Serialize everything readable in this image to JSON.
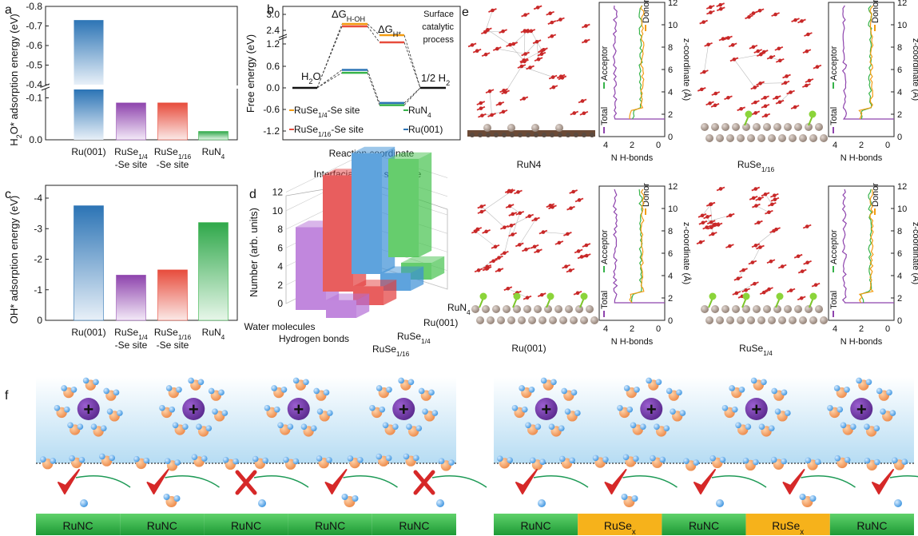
{
  "panel_labels": {
    "a": "a",
    "b": "b",
    "c": "c",
    "d": "d",
    "e": "e",
    "f": "f"
  },
  "chart_data": [
    {
      "panel": "a",
      "type": "bar",
      "ylabel": "H₂O* adsorption energy (eV)",
      "categories": [
        [
          "Ru(001)",
          ""
        ],
        [
          "RuSe1/4",
          "-Se site"
        ],
        [
          "RuSe1/16",
          "-Se site"
        ],
        [
          "RuN4",
          ""
        ]
      ],
      "values": [
        -0.73,
        -0.088,
        -0.088,
        -0.02
      ],
      "yticks_upper": [
        "-0.8",
        "-0.7",
        "-0.6",
        "-0.5",
        "-0.4"
      ],
      "yticks_lower": [
        "-0.1",
        "0.0"
      ],
      "colors": [
        "#2c74b5",
        "#9b59b6",
        "#e74c3c",
        "#37b34a"
      ]
    },
    {
      "panel": "b",
      "type": "line",
      "ylabel": "Free energy (eV)",
      "xlabel": "Reaction coordinate",
      "yticks": [
        "3.0",
        "2.4",
        "1.2",
        "0.6",
        "0.0",
        "-0.6",
        "-1.2"
      ],
      "labels": {
        "start": "H₂O",
        "end": "1/2 H₂",
        "dg_hoh": "ΔG",
        "dg_hoh_sub": "H-OH",
        "dg_h": "ΔG",
        "dg_h_sub": "H*",
        "surface": [
          "Surface",
          "catalytic",
          "process"
        ]
      },
      "series": [
        {
          "name": "RuSe1/4-Se site",
          "color": "#f39c12",
          "values": [
            0,
            2.72,
            1.45,
            0
          ]
        },
        {
          "name": "RuSe1/16-Se site",
          "color": "#e74c3c",
          "values": [
            0,
            2.66,
            1.3,
            0
          ]
        },
        {
          "name": "RuN4",
          "color": "#37b34a",
          "values": [
            0,
            0.42,
            -0.48,
            0
          ]
        },
        {
          "name": "Ru(001)",
          "color": "#2c74b5",
          "values": [
            0,
            0.5,
            -0.42,
            0
          ]
        }
      ],
      "legend": [
        {
          "t": "RuSe",
          "sub": "1/4",
          "t2": "-Se site",
          "color": "#f39c12"
        },
        {
          "t": "RuN",
          "sub": "4",
          "t2": "",
          "color": "#37b34a"
        },
        {
          "t": "RuSe",
          "sub": "1/16",
          "t2": "-Se site",
          "color": "#e74c3c"
        },
        {
          "t": "Ru(001)",
          "sub": "",
          "t2": "",
          "color": "#2c74b5"
        }
      ]
    },
    {
      "panel": "c",
      "type": "bar",
      "ylabel": "OH* adsorption energy (eV)",
      "categories": [
        [
          "Ru(001)",
          ""
        ],
        [
          "RuSe1/4",
          "-Se site"
        ],
        [
          "RuSe1/16",
          "-Se site"
        ],
        [
          "RuN4",
          ""
        ]
      ],
      "values": [
        -3.75,
        -1.48,
        -1.65,
        -3.2
      ],
      "ylim": [
        0,
        -4
      ],
      "yticks": [
        "-4",
        "-3",
        "-2",
        "-1",
        "0"
      ],
      "colors": [
        "#2c74b5",
        "#9b59b6",
        "#e74c3c",
        "#37b34a"
      ]
    },
    {
      "panel": "d",
      "type": "bar",
      "title": "Interfacial water structure",
      "ylabel": "Number (arb. units)",
      "yticks": [
        "0",
        "2",
        "4",
        "6",
        "8",
        "10",
        "12"
      ],
      "rows": [
        "Water molecules",
        "Hydrogen bonds"
      ],
      "cols": [
        "RuSe1/16",
        "RuSe1/4",
        "Ru(001)",
        "RuN4"
      ],
      "series": [
        {
          "name": "RuSe1/16",
          "color": "#b46dd6",
          "values": [
            7.4,
            1.6
          ]
        },
        {
          "name": "RuSe1/4",
          "color": "#e33b3b",
          "values": [
            10.4,
            1.7
          ]
        },
        {
          "name": "Ru(001)",
          "color": "#3b8fd6",
          "values": [
            10.8,
            1.6
          ]
        },
        {
          "name": "RuN4",
          "color": "#45c24d",
          "values": [
            8.8,
            1.5
          ]
        }
      ]
    }
  ],
  "panel_e": {
    "structures": [
      {
        "name": "RuN4",
        "sub": ""
      },
      {
        "name": "RuSe",
        "sub": "1/16"
      },
      {
        "name": "Ru(001)",
        "sub": ""
      },
      {
        "name": "RuSe",
        "sub": "1/4"
      }
    ],
    "profile_xlabel": "N H-bonds",
    "profile_ylabel": "z-coordinate (Å)",
    "profile_xticks": [
      "4",
      "2",
      "0"
    ],
    "profile_yticks": [
      "0",
      "2",
      "4",
      "6",
      "8",
      "10",
      "12"
    ],
    "legend": [
      {
        "name": "Total",
        "color": "#8e44ad"
      },
      {
        "name": "Acceptor",
        "color": "#37b34a"
      },
      {
        "name": "Donor",
        "color": "#f39c12"
      }
    ]
  },
  "panel_f": {
    "left_segments": [
      "RuNC",
      "RuNC",
      "RuNC",
      "RuNC",
      "RuNC"
    ],
    "right_segments": [
      {
        "t": "RuNC",
        "sub": ""
      },
      {
        "t": "RuSe",
        "sub": "x"
      },
      {
        "t": "RuNC",
        "sub": ""
      },
      {
        "t": "RuSe",
        "sub": "x"
      },
      {
        "t": "RuNC",
        "sub": ""
      }
    ],
    "left_marks": [
      "check",
      "check",
      "cross",
      "check",
      "cross"
    ],
    "right_marks": [
      "check",
      "check",
      "check",
      "check",
      "check"
    ],
    "cation_symbol": "+"
  }
}
